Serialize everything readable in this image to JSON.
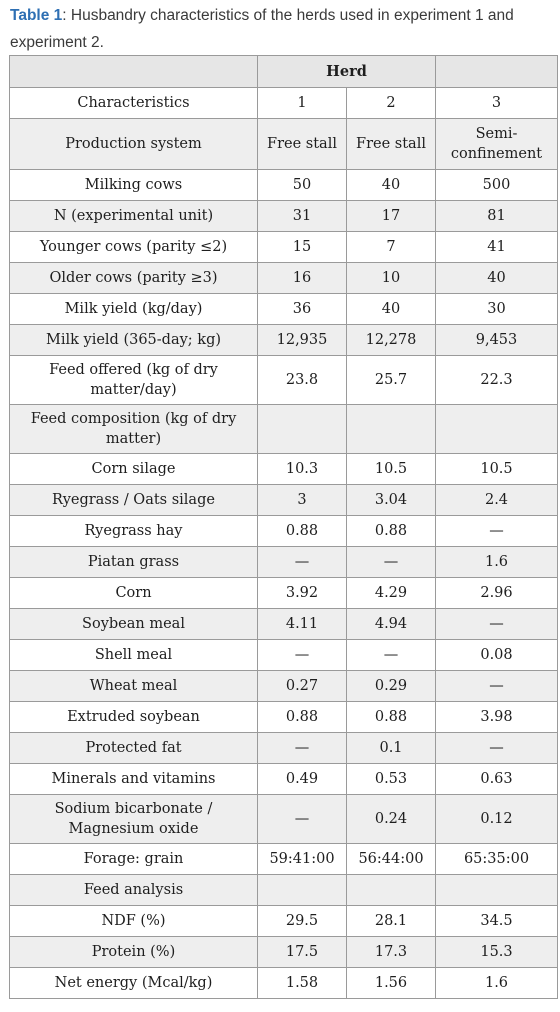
{
  "caption": {
    "label": "Table 1",
    "text": ": Husbandry characteristics of the herds used in experiment 1 and experiment 2."
  },
  "table": {
    "header": {
      "c0": "",
      "herd": "Herd",
      "c3": ""
    },
    "rows": [
      {
        "c": [
          "Characteristics",
          "1",
          "2",
          "3"
        ],
        "h": "r1",
        "bg": "white"
      },
      {
        "c": [
          "Production system",
          "Free stall",
          "Free stall",
          "Semi-confinement"
        ],
        "h": "r2",
        "bg": "grey"
      },
      {
        "c": [
          "Milking cows",
          "50",
          "40",
          "500"
        ],
        "h": "r1",
        "bg": "white"
      },
      {
        "c": [
          "N (experimental unit)",
          "31",
          "17",
          "81"
        ],
        "h": "r1",
        "bg": "grey"
      },
      {
        "c": [
          "Younger cows (parity ≤2)",
          "15",
          "7",
          "41"
        ],
        "h": "r1",
        "bg": "white"
      },
      {
        "c": [
          "Older cows (parity ≥3)",
          "16",
          "10",
          "40"
        ],
        "h": "r1",
        "bg": "grey"
      },
      {
        "c": [
          "Milk yield (kg/day)",
          "36",
          "40",
          "30"
        ],
        "h": "r1",
        "bg": "white"
      },
      {
        "c": [
          "Milk yield (365-day; kg)",
          "12,935",
          "12,278",
          "9,453"
        ],
        "h": "r1",
        "bg": "grey"
      },
      {
        "c": [
          "Feed offered (kg of dry matter/day)",
          "23.8",
          "25.7",
          "22.3"
        ],
        "h": "r3",
        "bg": "white"
      },
      {
        "c": [
          "Feed composition (kg of dry matter)",
          "",
          "",
          ""
        ],
        "h": "r3",
        "bg": "grey"
      },
      {
        "c": [
          "Corn silage",
          "10.3",
          "10.5",
          "10.5"
        ],
        "h": "r1",
        "bg": "white"
      },
      {
        "c": [
          "Ryegrass / Oats silage",
          "3",
          "3.04",
          "2.4"
        ],
        "h": "r1",
        "bg": "grey"
      },
      {
        "c": [
          "Ryegrass hay",
          "0.88",
          "0.88",
          "—"
        ],
        "h": "r1",
        "bg": "white"
      },
      {
        "c": [
          "Piatan grass",
          "—",
          "—",
          "1.6"
        ],
        "h": "r1",
        "bg": "grey"
      },
      {
        "c": [
          "Corn",
          "3.92",
          "4.29",
          "2.96"
        ],
        "h": "r1",
        "bg": "white"
      },
      {
        "c": [
          "Soybean meal",
          "4.11",
          "4.94",
          "—"
        ],
        "h": "r1",
        "bg": "grey"
      },
      {
        "c": [
          "Shell meal",
          "—",
          "—",
          "0.08"
        ],
        "h": "r1",
        "bg": "white"
      },
      {
        "c": [
          "Wheat meal",
          "0.27",
          "0.29",
          "—"
        ],
        "h": "r1",
        "bg": "grey"
      },
      {
        "c": [
          "Extruded soybean",
          "0.88",
          "0.88",
          "3.98"
        ],
        "h": "r1",
        "bg": "white"
      },
      {
        "c": [
          "Protected fat",
          "—",
          "0.1",
          "—"
        ],
        "h": "r1",
        "bg": "grey"
      },
      {
        "c": [
          "Minerals and vitamins",
          "0.49",
          "0.53",
          "0.63"
        ],
        "h": "r1",
        "bg": "white"
      },
      {
        "c": [
          "Sodium bicarbonate / Magnesium oxide",
          "—",
          "0.24",
          "0.12"
        ],
        "h": "r3",
        "bg": "grey"
      },
      {
        "c": [
          "Forage: grain",
          "59:41:00",
          "56:44:00",
          "65:35:00"
        ],
        "h": "r1",
        "bg": "white"
      },
      {
        "c": [
          "Feed analysis",
          "",
          "",
          ""
        ],
        "h": "r1",
        "bg": "grey"
      },
      {
        "c": [
          "NDF (%)",
          "29.5",
          "28.1",
          "34.5"
        ],
        "h": "r1",
        "bg": "white"
      },
      {
        "c": [
          "Protein (%)",
          "17.5",
          "17.3",
          "15.3"
        ],
        "h": "r1",
        "bg": "grey"
      },
      {
        "c": [
          "Net energy (Mcal/kg)",
          "1.58",
          "1.56",
          "1.6"
        ],
        "h": "r1",
        "bg": "white"
      }
    ]
  }
}
